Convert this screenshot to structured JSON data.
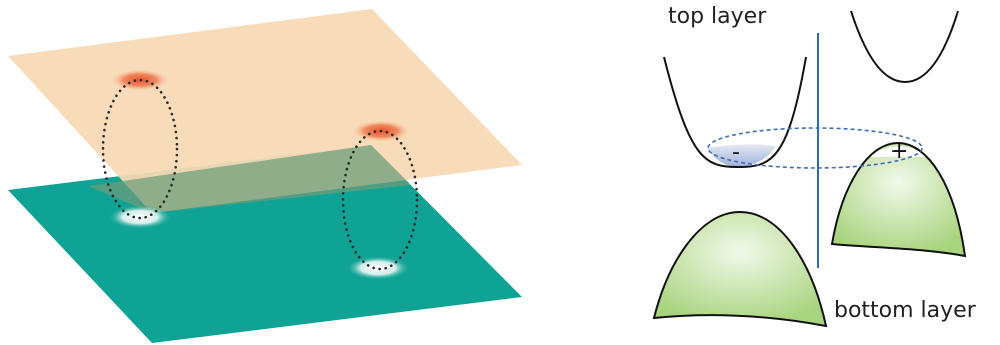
{
  "labels": {
    "top_layer": "top layer",
    "bottom_layer": "bottom layer",
    "minus": "-",
    "plus": "+"
  },
  "colors": {
    "top_plane": "#f8d9b4",
    "bottom_plane": "#0ea394",
    "overlap": "#6f9c7c",
    "electron_spot": "#e8502a",
    "hole_spot": "#ffffff",
    "valence_band": "#b9dc94",
    "filled_electrons": "#c3cde8",
    "divider": "#2e6ea7",
    "exciton_loop": "#3f6fb3"
  }
}
